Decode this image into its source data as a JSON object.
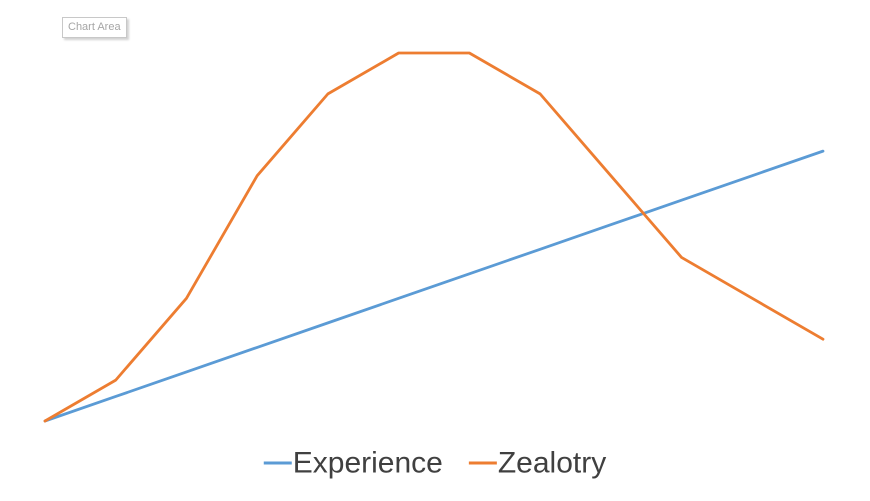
{
  "tooltip": {
    "text": "Chart Area"
  },
  "chart_data": {
    "type": "line",
    "x": [
      0,
      1,
      2,
      3,
      4,
      5,
      6,
      7,
      8,
      9,
      10,
      11
    ],
    "series": [
      {
        "name": "Experience",
        "color": "#5b9bd5",
        "values": [
          0,
          0.6,
          1.2,
          1.8,
          2.4,
          3.0,
          3.6,
          4.2,
          4.8,
          5.4,
          6.0,
          6.6
        ]
      },
      {
        "name": "Zealotry",
        "color": "#ed7d31",
        "values": [
          0,
          1,
          3,
          6,
          8,
          9,
          9,
          8,
          6,
          4,
          3,
          2
        ]
      }
    ],
    "ylim": [
      0,
      9
    ],
    "title": "",
    "xlabel": "",
    "ylabel": "",
    "grid": false,
    "legend": "bottom"
  }
}
